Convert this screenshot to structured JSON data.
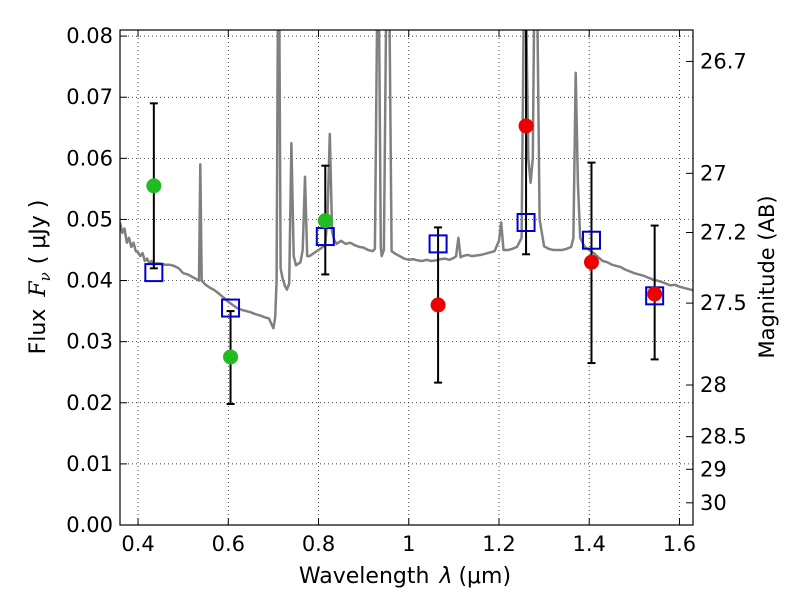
{
  "chart_data": {
    "type": "scatter",
    "xlabel_text": "Wavelength",
    "xlabel_symbol": "λ",
    "xlabel_unit": "(μm)",
    "ylabel_text": "Flux",
    "ylabel_symbol": "F",
    "ylabel_subscript": "ν",
    "ylabel_unit": "( μJy )",
    "y2label": "Magnitude (AB)",
    "xlim": [
      0.36,
      1.63
    ],
    "ylim": [
      0.0,
      0.081
    ],
    "grid": true,
    "grid_style": "dotted",
    "x_ticks": [
      0.4,
      0.6,
      0.8,
      1.0,
      1.2,
      1.4,
      1.6
    ],
    "x_tick_labels": [
      "0.4",
      "0.6",
      "0.8",
      "1",
      "1.2",
      "1.4",
      "1.6"
    ],
    "y_ticks": [
      0.0,
      0.01,
      0.02,
      0.03,
      0.04,
      0.05,
      0.06,
      0.07,
      0.08
    ],
    "y_tick_labels": [
      "0.00",
      "0.01",
      "0.02",
      "0.03",
      "0.04",
      "0.05",
      "0.06",
      "0.07",
      "0.08"
    ],
    "magnitude_ticks": [
      {
        "label": "26.7",
        "mag": 26.7
      },
      {
        "label": "27",
        "mag": 27.0
      },
      {
        "label": "27.2",
        "mag": 27.2
      },
      {
        "label": "27.5",
        "mag": 27.5
      },
      {
        "label": "28",
        "mag": 28.0
      },
      {
        "label": "28.5",
        "mag": 28.5
      },
      {
        "label": "29",
        "mag": 29.0
      },
      {
        "label": "30",
        "mag": 30.0
      }
    ],
    "colors": {
      "spectrum": "#808080",
      "model_box": "#0000cc",
      "green_points": "#22bb22",
      "red_points": "#ee0000",
      "error_bars": "#000000"
    },
    "series": [
      {
        "type": "line",
        "color": "#808080",
        "points": [
          [
            0.36,
            0.0495
          ],
          [
            0.365,
            0.0478
          ],
          [
            0.37,
            0.0485
          ],
          [
            0.375,
            0.0462
          ],
          [
            0.38,
            0.047
          ],
          [
            0.385,
            0.0455
          ],
          [
            0.39,
            0.0462
          ],
          [
            0.395,
            0.0448
          ],
          [
            0.4,
            0.0446
          ],
          [
            0.405,
            0.044
          ],
          [
            0.41,
            0.0445
          ],
          [
            0.415,
            0.0432
          ],
          [
            0.42,
            0.0436
          ],
          [
            0.425,
            0.0428
          ],
          [
            0.43,
            0.0432
          ],
          [
            0.435,
            0.0425
          ],
          [
            0.44,
            0.0428
          ],
          [
            0.45,
            0.0428
          ],
          [
            0.46,
            0.0426
          ],
          [
            0.47,
            0.0426
          ],
          [
            0.48,
            0.0424
          ],
          [
            0.49,
            0.042
          ],
          [
            0.5,
            0.0412
          ],
          [
            0.51,
            0.041
          ],
          [
            0.52,
            0.0406
          ],
          [
            0.53,
            0.0402
          ],
          [
            0.535,
            0.04
          ],
          [
            0.538,
            0.059
          ],
          [
            0.541,
            0.04
          ],
          [
            0.55,
            0.0393
          ],
          [
            0.56,
            0.0388
          ],
          [
            0.57,
            0.0384
          ],
          [
            0.58,
            0.0378
          ],
          [
            0.59,
            0.0372
          ],
          [
            0.6,
            0.0365
          ],
          [
            0.61,
            0.036
          ],
          [
            0.62,
            0.0355
          ],
          [
            0.63,
            0.0352
          ],
          [
            0.64,
            0.035
          ],
          [
            0.65,
            0.0348
          ],
          [
            0.66,
            0.0345
          ],
          [
            0.67,
            0.0343
          ],
          [
            0.68,
            0.034
          ],
          [
            0.69,
            0.0338
          ],
          [
            0.695,
            0.033
          ],
          [
            0.7,
            0.0322
          ],
          [
            0.704,
            0.034
          ],
          [
            0.707,
            0.04
          ],
          [
            0.71,
            0.085
          ],
          [
            0.713,
            0.085
          ],
          [
            0.716,
            0.042
          ],
          [
            0.72,
            0.0405
          ],
          [
            0.725,
            0.0392
          ],
          [
            0.73,
            0.0385
          ],
          [
            0.735,
            0.0395
          ],
          [
            0.74,
            0.0625
          ],
          [
            0.745,
            0.044
          ],
          [
            0.75,
            0.0425
          ],
          [
            0.76,
            0.043
          ],
          [
            0.765,
            0.045
          ],
          [
            0.77,
            0.057
          ],
          [
            0.775,
            0.044
          ],
          [
            0.78,
            0.044
          ],
          [
            0.79,
            0.0445
          ],
          [
            0.8,
            0.045
          ],
          [
            0.81,
            0.0455
          ],
          [
            0.815,
            0.046
          ],
          [
            0.82,
            0.0505
          ],
          [
            0.825,
            0.064
          ],
          [
            0.83,
            0.048
          ],
          [
            0.835,
            0.0466
          ],
          [
            0.84,
            0.046
          ],
          [
            0.85,
            0.0465
          ],
          [
            0.86,
            0.046
          ],
          [
            0.87,
            0.0462
          ],
          [
            0.88,
            0.0458
          ],
          [
            0.89,
            0.0455
          ],
          [
            0.9,
            0.0454
          ],
          [
            0.91,
            0.045
          ],
          [
            0.92,
            0.0448
          ],
          [
            0.925,
            0.0452
          ],
          [
            0.93,
            0.085
          ],
          [
            0.934,
            0.085
          ],
          [
            0.938,
            0.0455
          ],
          [
            0.94,
            0.044
          ],
          [
            0.945,
            0.045
          ],
          [
            0.95,
            0.085
          ],
          [
            0.957,
            0.085
          ],
          [
            0.962,
            0.0448
          ],
          [
            0.97,
            0.0444
          ],
          [
            0.98,
            0.044
          ],
          [
            0.99,
            0.0436
          ],
          [
            1.0,
            0.0434
          ],
          [
            1.01,
            0.0435
          ],
          [
            1.02,
            0.0433
          ],
          [
            1.03,
            0.0432
          ],
          [
            1.04,
            0.0434
          ],
          [
            1.05,
            0.0432
          ],
          [
            1.06,
            0.0433
          ],
          [
            1.07,
            0.0435
          ],
          [
            1.08,
            0.0436
          ],
          [
            1.09,
            0.0434
          ],
          [
            1.1,
            0.0437
          ],
          [
            1.105,
            0.044
          ],
          [
            1.11,
            0.047
          ],
          [
            1.115,
            0.0438
          ],
          [
            1.12,
            0.044
          ],
          [
            1.13,
            0.0442
          ],
          [
            1.14,
            0.044
          ],
          [
            1.15,
            0.0441
          ],
          [
            1.16,
            0.0442
          ],
          [
            1.17,
            0.0444
          ],
          [
            1.18,
            0.0446
          ],
          [
            1.19,
            0.0448
          ],
          [
            1.2,
            0.0465
          ],
          [
            1.205,
            0.0495
          ],
          [
            1.21,
            0.045
          ],
          [
            1.22,
            0.045
          ],
          [
            1.23,
            0.0452
          ],
          [
            1.24,
            0.0455
          ],
          [
            1.25,
            0.047
          ],
          [
            1.255,
            0.085
          ],
          [
            1.26,
            0.085
          ],
          [
            1.265,
            0.06
          ],
          [
            1.27,
            0.056
          ],
          [
            1.275,
            0.06
          ],
          [
            1.278,
            0.085
          ],
          [
            1.285,
            0.085
          ],
          [
            1.29,
            0.05
          ],
          [
            1.3,
            0.0456
          ],
          [
            1.31,
            0.0452
          ],
          [
            1.32,
            0.045
          ],
          [
            1.33,
            0.045
          ],
          [
            1.34,
            0.045
          ],
          [
            1.35,
            0.0452
          ],
          [
            1.36,
            0.0455
          ],
          [
            1.365,
            0.047
          ],
          [
            1.37,
            0.074
          ],
          [
            1.375,
            0.056
          ],
          [
            1.38,
            0.047
          ],
          [
            1.39,
            0.0455
          ],
          [
            1.4,
            0.045
          ],
          [
            1.41,
            0.0445
          ],
          [
            1.42,
            0.0438
          ],
          [
            1.43,
            0.0432
          ],
          [
            1.44,
            0.043
          ],
          [
            1.45,
            0.0426
          ],
          [
            1.46,
            0.0424
          ],
          [
            1.47,
            0.0422
          ],
          [
            1.48,
            0.0418
          ],
          [
            1.49,
            0.0415
          ],
          [
            1.5,
            0.0412
          ],
          [
            1.51,
            0.041
          ],
          [
            1.52,
            0.0408
          ],
          [
            1.53,
            0.0405
          ],
          [
            1.54,
            0.0402
          ],
          [
            1.55,
            0.04
          ],
          [
            1.56,
            0.0398
          ],
          [
            1.57,
            0.0395
          ],
          [
            1.58,
            0.0392
          ],
          [
            1.59,
            0.0393
          ],
          [
            1.6,
            0.039
          ],
          [
            1.61,
            0.0388
          ],
          [
            1.62,
            0.0386
          ],
          [
            1.63,
            0.0384
          ]
        ]
      },
      {
        "type": "marker-square",
        "color": "#0000cc",
        "points": [
          [
            0.435,
            0.0413
          ],
          [
            0.605,
            0.0355
          ],
          [
            0.815,
            0.0472
          ],
          [
            1.065,
            0.046
          ],
          [
            1.26,
            0.0495
          ],
          [
            1.405,
            0.0466
          ],
          [
            1.545,
            0.0375
          ]
        ]
      },
      {
        "type": "marker-circle",
        "color": "#22bb22",
        "points": [
          {
            "x": 0.435,
            "y": 0.0555,
            "yerr_low": 0.042,
            "yerr_high": 0.069
          },
          {
            "x": 0.605,
            "y": 0.0275,
            "yerr_low": 0.0198,
            "yerr_high": 0.035
          },
          {
            "x": 0.815,
            "y": 0.0498,
            "yerr_low": 0.041,
            "yerr_high": 0.0588
          }
        ]
      },
      {
        "type": "marker-circle",
        "color": "#ee0000",
        "points": [
          {
            "x": 1.065,
            "y": 0.036,
            "yerr_low": 0.0233,
            "yerr_high": 0.0487
          },
          {
            "x": 1.26,
            "y": 0.0653,
            "yerr_low": 0.0443,
            "yerr_high": 0.085
          },
          {
            "x": 1.405,
            "y": 0.043,
            "yerr_low": 0.0265,
            "yerr_high": 0.0593
          },
          {
            "x": 1.545,
            "y": 0.0378,
            "yerr_low": 0.0271,
            "yerr_high": 0.049
          }
        ]
      }
    ]
  }
}
